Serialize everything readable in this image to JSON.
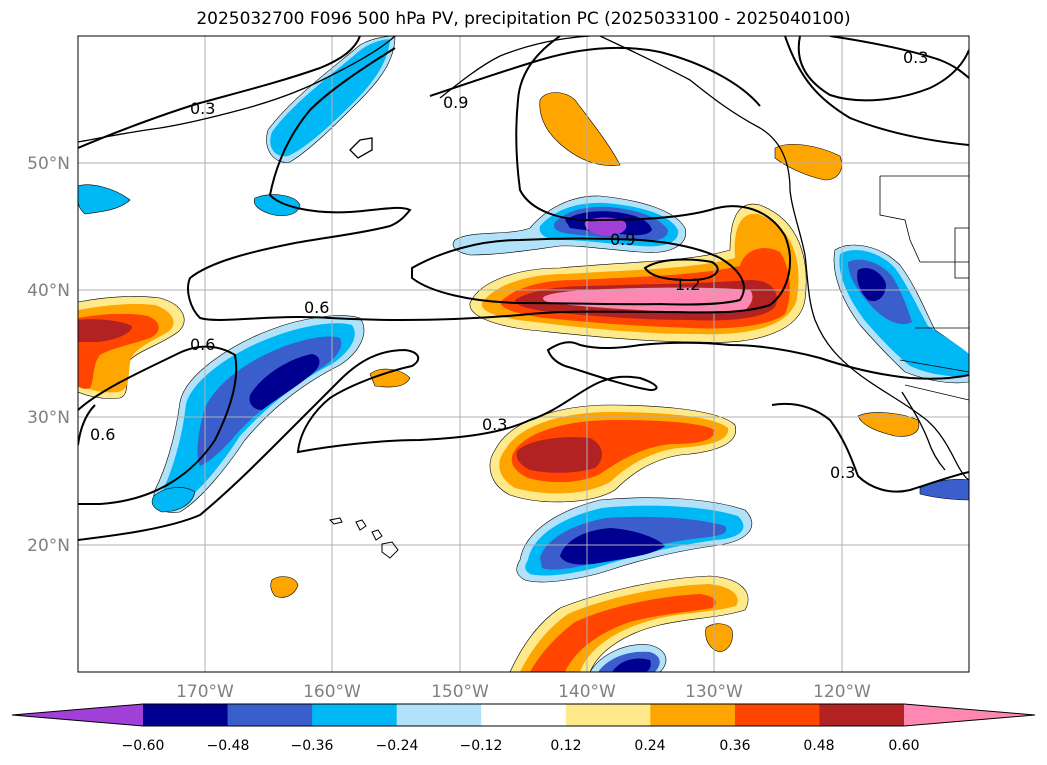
{
  "figure": {
    "title": "2025032700 F096 500 hPa PV, precipitation PC (2025033100 - 2025040100)"
  },
  "map": {
    "lon_range": [
      -180,
      -110
    ],
    "lat_range": [
      10,
      60
    ],
    "lat_ticks": [
      "50°N",
      "40°N",
      "30°N",
      "20°N"
    ],
    "lon_ticks": [
      "170°W",
      "160°W",
      "150°W",
      "140°W",
      "130°W",
      "120°W"
    ],
    "gridlines": true
  },
  "contour_labels": [
    "0.3",
    "0.9",
    "0.3",
    "0.9",
    "1.2",
    "0.6",
    "0.6",
    "0.6",
    "0.3",
    "0.3"
  ],
  "colorbar": {
    "ticks": [
      "−0.60",
      "−0.48",
      "−0.36",
      "−0.24",
      "−0.12",
      "0.12",
      "0.24",
      "0.36",
      "0.48",
      "0.60"
    ],
    "colors": [
      "#a040d8",
      "#000090",
      "#3a5fcd",
      "#00b8f5",
      "#b2e2fa",
      "#ffffff",
      "#fee98b",
      "#ffa500",
      "#ff4500",
      "#b22222",
      "#ff88b3"
    ]
  }
}
